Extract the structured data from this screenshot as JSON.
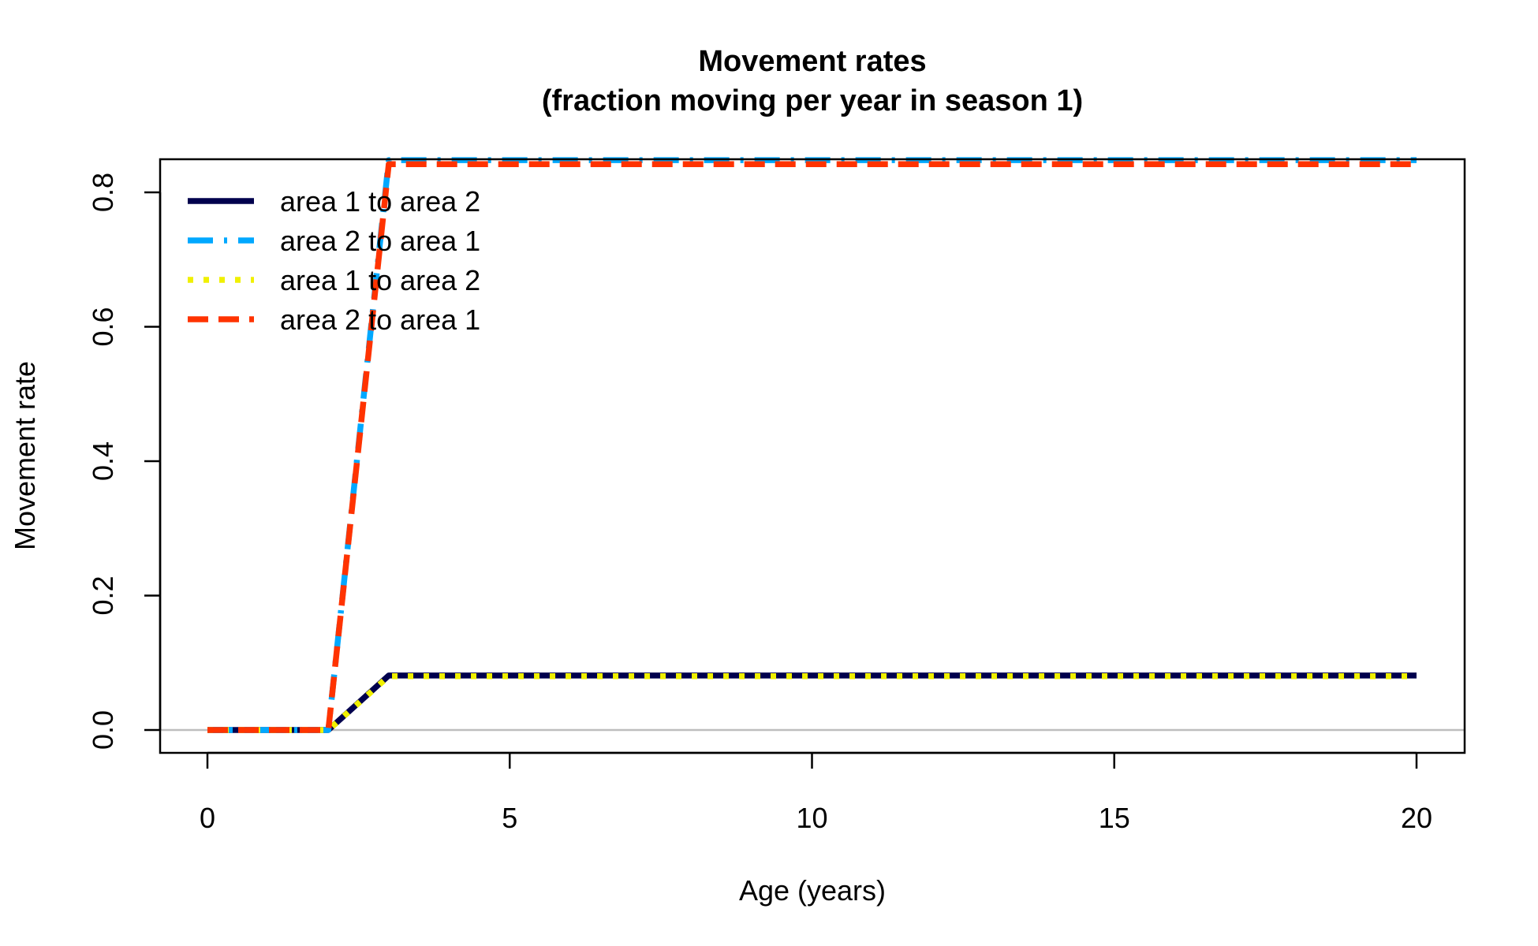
{
  "chart_data": {
    "type": "line",
    "title": "Movement rates",
    "subtitle": "(fraction moving per year in season 1)",
    "xlabel": "Age (years)",
    "ylabel": "Movement rate",
    "xlim": [
      0,
      20
    ],
    "ylim": [
      0,
      0.85
    ],
    "xticks": [
      0,
      5,
      10,
      15,
      20
    ],
    "yticks": [
      0.0,
      0.2,
      0.4,
      0.6,
      0.8
    ],
    "xtick_labels": [
      "0",
      "5",
      "10",
      "15",
      "20"
    ],
    "ytick_labels": [
      "0.0",
      "0.2",
      "0.4",
      "0.6",
      "0.8"
    ],
    "reference_line_y": 0,
    "reference_line_color": "#bebebe",
    "grid": false,
    "legend_position": "top-left",
    "x": [
      0,
      1,
      2,
      3,
      4,
      5,
      6,
      7,
      8,
      9,
      10,
      11,
      12,
      13,
      14,
      15,
      16,
      17,
      18,
      19,
      20
    ],
    "series": [
      {
        "name": "area 1 to area 2",
        "color": "#00004d",
        "dash": "solid",
        "values": [
          0,
          0,
          0,
          0.081,
          0.081,
          0.081,
          0.081,
          0.081,
          0.081,
          0.081,
          0.081,
          0.081,
          0.081,
          0.081,
          0.081,
          0.081,
          0.081,
          0.081,
          0.081,
          0.081,
          0.081
        ]
      },
      {
        "name": "area 2 to area 1",
        "color": "#00a8ff",
        "dash": "dashdot",
        "values": [
          0,
          0,
          0,
          0.848,
          0.848,
          0.848,
          0.848,
          0.848,
          0.848,
          0.848,
          0.848,
          0.848,
          0.848,
          0.848,
          0.848,
          0.848,
          0.848,
          0.848,
          0.848,
          0.848,
          0.848
        ]
      },
      {
        "name": "area 1 to area 2",
        "color": "#f0f000",
        "dash": "dotted",
        "values": [
          0,
          0,
          0,
          0.08,
          0.08,
          0.08,
          0.08,
          0.08,
          0.08,
          0.08,
          0.08,
          0.08,
          0.08,
          0.08,
          0.08,
          0.08,
          0.08,
          0.08,
          0.08,
          0.08,
          0.08
        ]
      },
      {
        "name": "area 2 to area 1",
        "color": "#ff3300",
        "dash": "dashed",
        "values": [
          0,
          0,
          0,
          0.842,
          0.842,
          0.842,
          0.842,
          0.842,
          0.842,
          0.842,
          0.842,
          0.842,
          0.842,
          0.842,
          0.842,
          0.842,
          0.842,
          0.842,
          0.842,
          0.842,
          0.842
        ]
      }
    ]
  }
}
